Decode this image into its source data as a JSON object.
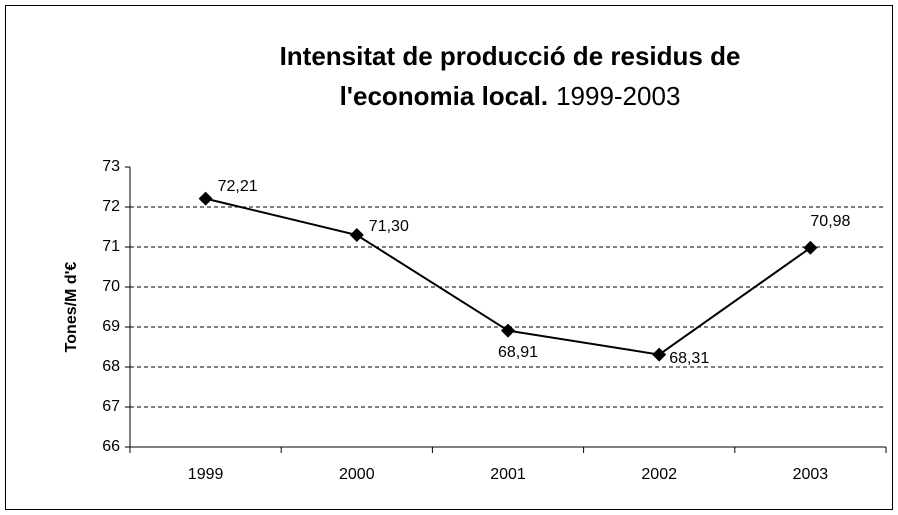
{
  "chart_data": {
    "type": "line",
    "title": [
      "Intensitat de producció de residus de",
      "l'economia local."
    ],
    "subtitle": "1999-2003",
    "y_label": "Tones/M d'€",
    "categories": [
      "1999",
      "2000",
      "2001",
      "2002",
      "2003"
    ],
    "values": [
      72.21,
      71.3,
      68.91,
      68.31,
      70.98
    ],
    "value_labels": [
      "72,21",
      "71,30",
      "68,91",
      "68,31",
      "70,98"
    ],
    "color": "#000000",
    "ylim": [
      66,
      73
    ],
    "yticks": [
      66,
      67,
      68,
      69,
      70,
      71,
      72,
      73
    ],
    "grid": true
  }
}
